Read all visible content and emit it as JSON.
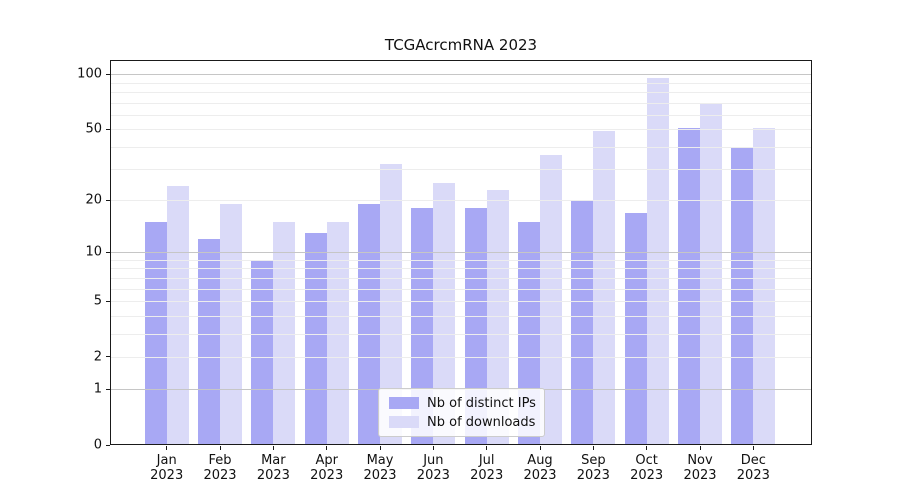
{
  "title": "TCGAcrcmRNA 2023",
  "legend": {
    "items": [
      {
        "label": "Nb of distinct IPs",
        "color": "#a8a8f4"
      },
      {
        "label": "Nb of downloads",
        "color": "#dadaf8"
      }
    ]
  },
  "y_axis": {
    "tick_labels": [
      "100",
      "50",
      "20",
      "10",
      "5",
      "2",
      "1",
      "0"
    ],
    "tick_values": [
      100,
      50,
      20,
      10,
      5,
      2,
      1,
      0
    ]
  },
  "x_axis": {
    "tick_labels": [
      "Jan 2023",
      "Feb 2023",
      "Mar 2023",
      "Apr 2023",
      "May 2023",
      "Jun 2023",
      "Jul 2023",
      "Aug 2023",
      "Sep 2023",
      "Oct 2023",
      "Nov 2023",
      "Dec 2023"
    ]
  },
  "chart_data": {
    "type": "bar",
    "title": "TCGAcrcmRNA 2023",
    "categories": [
      "Jan 2023",
      "Feb 2023",
      "Mar 2023",
      "Apr 2023",
      "May 2023",
      "Jun 2023",
      "Jul 2023",
      "Aug 2023",
      "Sep 2023",
      "Oct 2023",
      "Nov 2023",
      "Dec 2023"
    ],
    "series": [
      {
        "name": "Nb of distinct IPs",
        "color": "#a8a8f4",
        "values": [
          15,
          12,
          9,
          13,
          19,
          18,
          18,
          15,
          20,
          17,
          51,
          40
        ]
      },
      {
        "name": "Nb of downloads",
        "color": "#dadaf8",
        "values": [
          24,
          19,
          15,
          15,
          32,
          25,
          23,
          36,
          49,
          95,
          69,
          51
        ]
      }
    ],
    "yscale": "log1p",
    "y_ticks": [
      0,
      1,
      2,
      5,
      10,
      20,
      50,
      100
    ],
    "ylim": [
      0,
      120
    ],
    "gridlines": {
      "major": [
        1,
        10,
        100
      ],
      "minor": [
        2,
        3,
        4,
        5,
        6,
        7,
        8,
        9,
        20,
        30,
        40,
        50,
        60,
        70,
        80,
        90
      ]
    },
    "grid": "horizontal",
    "legend_position": "lower center inside"
  }
}
